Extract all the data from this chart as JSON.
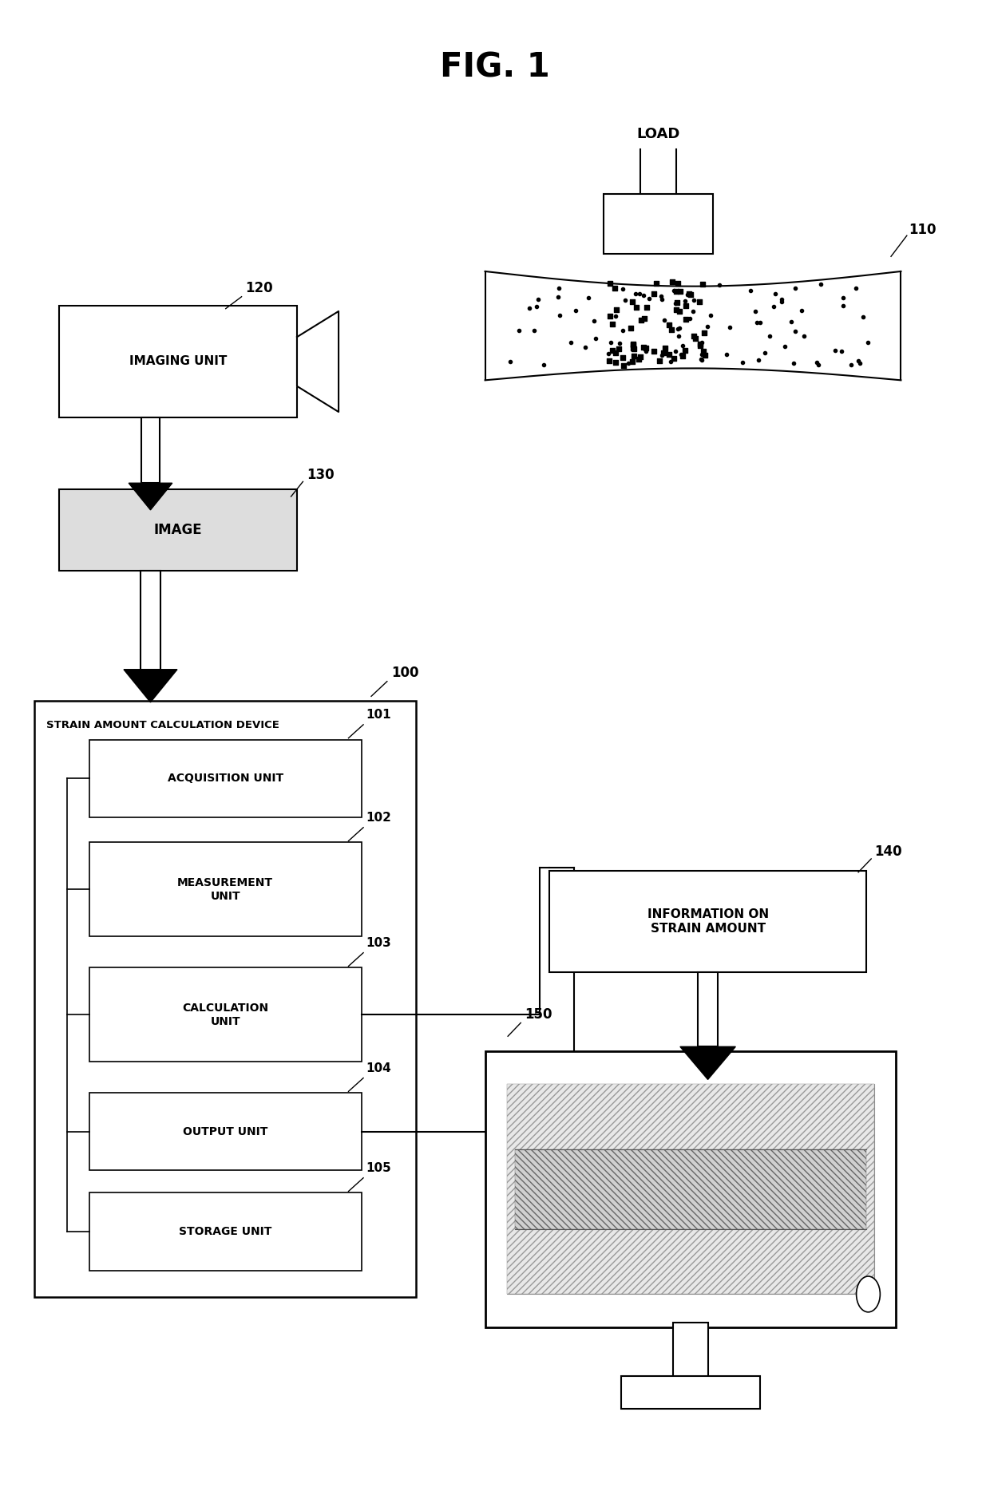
{
  "title": "FIG. 1",
  "bg_color": "#ffffff",
  "line_color": "#000000",
  "load_label": "LOAD",
  "ref_110": "110",
  "ref_120": "120",
  "imaging_label": "IMAGING UNIT",
  "ref_130": "130",
  "image_label": "IMAGE",
  "ref_100": "100",
  "device_label": "STRAIN AMOUNT CALCULATION DEVICE",
  "ref_101": "101",
  "acq_label": "ACQUISITION UNIT",
  "ref_102": "102",
  "meas_label": "MEASUREMENT\nUNIT",
  "ref_103": "103",
  "calc_label": "CALCULATION\nUNIT",
  "ref_104": "104",
  "out_label": "OUTPUT UNIT",
  "ref_105": "105",
  "stor_label": "STORAGE UNIT",
  "ref_140": "140",
  "info_label": "INFORMATION ON\nSTRAIN AMOUNT",
  "ref_150": "150"
}
